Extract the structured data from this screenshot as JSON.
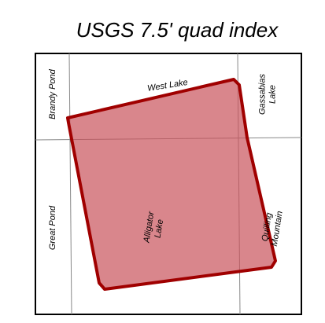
{
  "title": "USGS 7.5' quad index",
  "quads": [
    {
      "lines": [
        "Brandy Pond"
      ]
    },
    {
      "lines": [
        "West Lake"
      ]
    },
    {
      "lines": [
        "Gassabias",
        "Lake"
      ]
    },
    {
      "lines": [
        "Great Pond"
      ]
    },
    {
      "lines": [
        "Alligator",
        "Lake"
      ]
    },
    {
      "lines": [
        "Quilling",
        "Mountain"
      ]
    }
  ]
}
